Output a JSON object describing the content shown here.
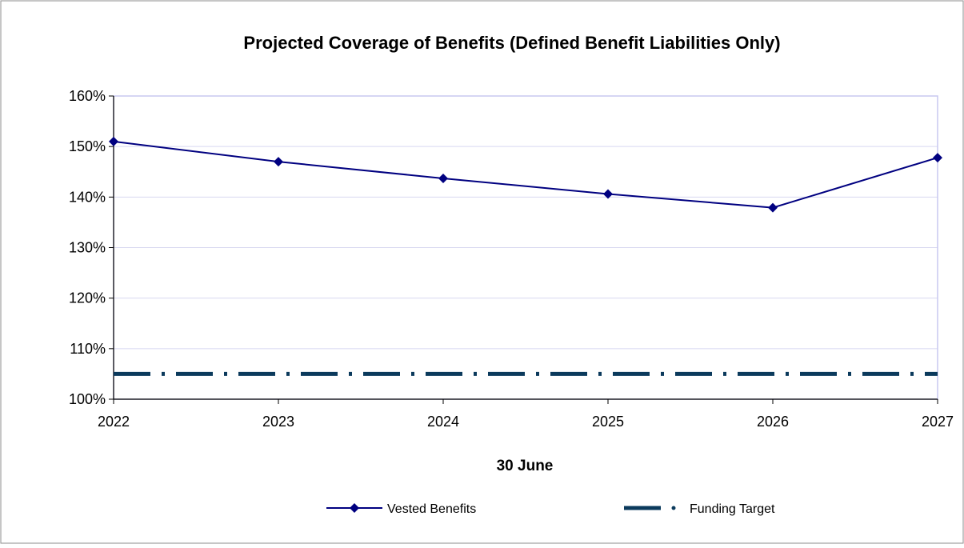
{
  "chart_data": {
    "type": "line",
    "title": "Projected Coverage of Benefits (Defined Benefit Liabilities Only)",
    "xlabel": "30 June",
    "ylabel": "",
    "x": [
      2022,
      2023,
      2024,
      2025,
      2026,
      2027
    ],
    "x_tick_labels": [
      "2022",
      "2023",
      "2024",
      "2025",
      "2026",
      "2027"
    ],
    "ylim": [
      100,
      160
    ],
    "y_ticks": [
      100,
      110,
      120,
      130,
      140,
      150,
      160
    ],
    "y_tick_labels": [
      "100%",
      "110%",
      "120%",
      "130%",
      "140%",
      "150%",
      "160%"
    ],
    "grid": true,
    "legend_position": "bottom",
    "series": [
      {
        "name": "Vested Benefits",
        "values": [
          151,
          147,
          143.7,
          140.6,
          137.9,
          147.8
        ],
        "color": "#000080",
        "marker": "diamond",
        "line_style": "solid"
      },
      {
        "name": "Funding Target",
        "values": [
          105,
          105,
          105,
          105,
          105,
          105
        ],
        "color": "#0B3A5C",
        "marker": "none",
        "line_style": "dash-dot"
      }
    ]
  }
}
